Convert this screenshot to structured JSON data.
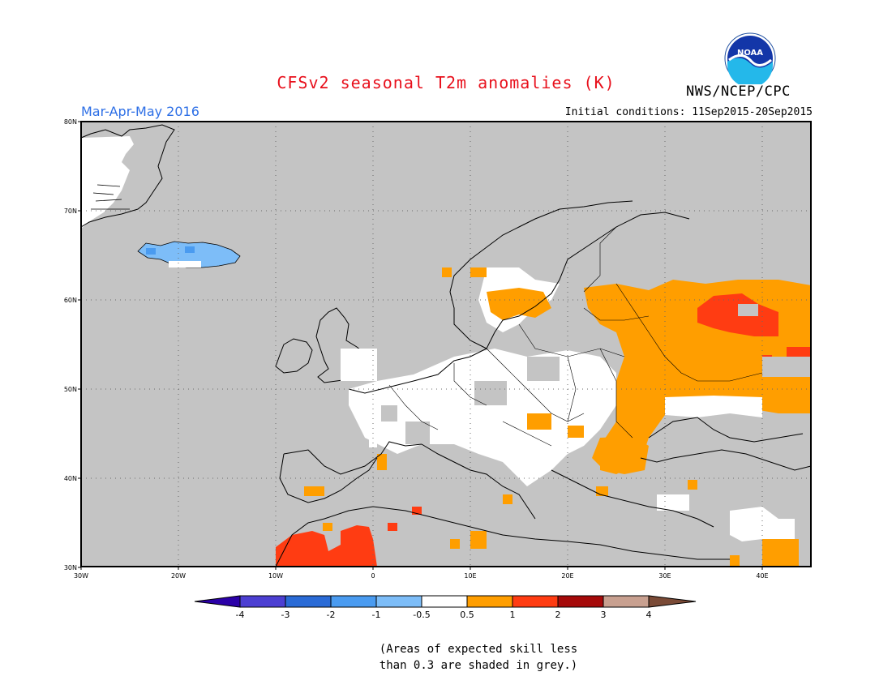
{
  "header": {
    "title": "CFSv2 seasonal T2m anomalies (K)",
    "season": "Mar-Apr-May 2016",
    "initial_conditions": "Initial conditions: 11Sep2015-20Sep2015",
    "agency": "NWS/NCEP/CPC",
    "logo_text": "NOAA"
  },
  "map": {
    "lon_range": [
      -30,
      45
    ],
    "lat_range": [
      30,
      80
    ],
    "lon_ticks": [
      "30W",
      "20W",
      "10W",
      "0",
      "10E",
      "20E",
      "30E",
      "40E"
    ],
    "lat_ticks": [
      "80N",
      "70N",
      "60N",
      "50N",
      "40N",
      "30N"
    ],
    "background_color": "#c4c4c4",
    "grid": "dotted"
  },
  "colorbar": {
    "labels": [
      "-4",
      "-3",
      "-2",
      "-1",
      "-0.5",
      "0.5",
      "1",
      "2",
      "3",
      "4"
    ],
    "colors": [
      "#2b00a8",
      "#4c3fd2",
      "#2a6bd6",
      "#4a9bf0",
      "#7dbdf8",
      "#ffffff",
      "#ff9e00",
      "#ff3c12",
      "#a50a0a",
      "#c8a090",
      "#7a4a36"
    ]
  },
  "footnote": {
    "line1": "(Areas of expected skill less",
    "line2": "than 0.3 are shaded in grey.)"
  }
}
